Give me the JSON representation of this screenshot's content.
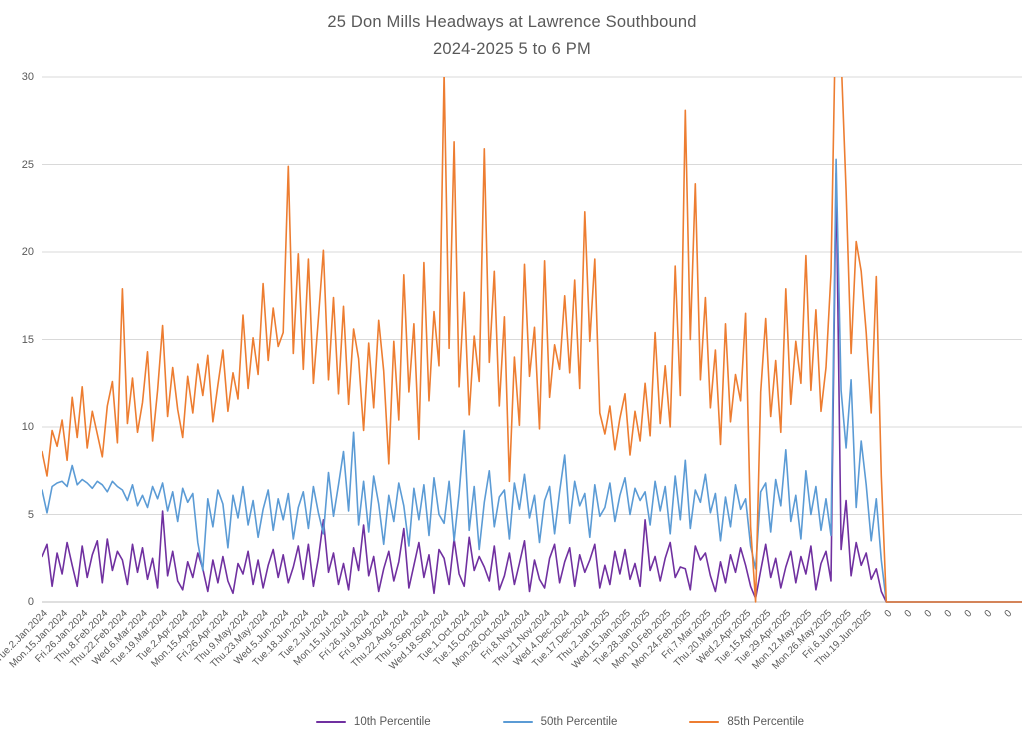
{
  "chart_data": {
    "type": "line",
    "title_line1": "25 Don Mills Headways at Lawrence Southbound",
    "title_line2": "2024-2025 5 to 6 PM",
    "y_min": 0,
    "y_max": 30,
    "y_ticks": [
      0,
      5,
      10,
      15,
      20,
      25,
      30
    ],
    "grid": true,
    "legend_position": "bottom",
    "label_step": 4,
    "x_labels": [
      "Tue.2.Jan.2024",
      "Mon.15.Jan.2024",
      "Fri.26.Jan.2024",
      "Thu.8.Feb.2024",
      "Thu.22.Feb.2024",
      "Wed.6.Mar.2024",
      "Tue.19.Mar.2024",
      "Tue.2.Apr.2024",
      "Mon.15.Apr.2024",
      "Fri.26.Apr.2024",
      "Thu.9.May.2024",
      "Thu.23.May.2024",
      "Wed.5.Jun.2024",
      "Tue.18.Jun.2024",
      "Tue.2.Jul.2024",
      "Mon.15.Jul.2024",
      "Fri.26.Jul.2024",
      "Fri.9.Aug.2024",
      "Thu.22.Aug.2024",
      "Thu.5.Sep.2024",
      "Wed.18.Sep.2024",
      "Tue.1.Oct.2024",
      "Tue.15.Oct.2024",
      "Mon.28.Oct.2024",
      "Fri.8.Nov.2024",
      "Thu.21.Nov.2024",
      "Wed.4.Dec.2024",
      "Tue.17.Dec.2024",
      "Thu.2.Jan.2025",
      "Wed.15.Jan.2025",
      "Tue.28.Jan.2025",
      "Mon.10.Feb.2025",
      "Mon.24.Feb.2025",
      "Fri.7.Mar.2025",
      "Thu.20.Mar.2025",
      "Wed.2.Apr.2025",
      "Tue.15.Apr.2025",
      "Tue.29.Apr.2025",
      "Mon.12.May.2025",
      "Mon.26.May.2025",
      "Fri.6.Jun.2025",
      "Thu.19.Jun.2025",
      "0",
      "0",
      "0",
      "0",
      "0",
      "0",
      "0"
    ],
    "series": [
      {
        "name": "10th Percentile",
        "color": "#7030A0",
        "values": [
          2.6,
          3.3,
          0.9,
          2.8,
          1.6,
          3.4,
          2.1,
          0.9,
          3.2,
          1.4,
          2.7,
          3.5,
          1.1,
          3.6,
          1.8,
          2.9,
          2.4,
          1.0,
          3.3,
          1.7,
          3.1,
          1.3,
          2.5,
          0.8,
          5.2,
          1.5,
          2.9,
          1.2,
          0.7,
          2.3,
          1.4,
          2.8,
          1.9,
          0.6,
          2.4,
          1.1,
          2.6,
          1.2,
          0.5,
          2.2,
          1.6,
          2.9,
          1.0,
          2.4,
          0.8,
          2.1,
          3.0,
          1.4,
          2.7,
          1.1,
          2.0,
          3.2,
          1.3,
          3.3,
          0.9,
          2.5,
          4.7,
          1.7,
          2.8,
          1.0,
          2.2,
          0.7,
          3.1,
          1.8,
          4.4,
          1.5,
          2.6,
          0.6,
          1.9,
          2.9,
          1.2,
          2.3,
          4.2,
          0.8,
          2.1,
          3.4,
          1.4,
          2.7,
          0.5,
          3.0,
          2.5,
          1.0,
          3.6,
          1.6,
          0.9,
          3.7,
          1.8,
          2.6,
          2.0,
          1.2,
          3.2,
          0.7,
          1.5,
          2.8,
          1.0,
          2.2,
          3.5,
          0.6,
          2.4,
          1.3,
          0.8,
          2.5,
          3.3,
          1.1,
          2.3,
          3.1,
          0.9,
          2.7,
          1.7,
          2.4,
          3.3,
          0.8,
          2.1,
          1.0,
          2.9,
          1.6,
          3.0,
          1.3,
          2.2,
          0.9,
          4.7,
          1.8,
          2.6,
          1.2,
          2.5,
          3.4,
          1.4,
          2.0,
          1.9,
          0.7,
          3.2,
          2.4,
          2.8,
          1.5,
          0.6,
          2.3,
          1.1,
          2.7,
          1.7,
          3.1,
          2.1,
          0.9,
          0.2,
          1.8,
          3.3,
          1.4,
          2.5,
          0.8,
          2.0,
          2.9,
          1.1,
          2.6,
          1.6,
          3.2,
          0.7,
          2.2,
          2.9,
          1.2,
          24.5,
          3.0,
          5.8,
          1.5,
          3.4,
          2.1,
          2.8,
          1.3,
          1.9,
          0.6,
          0,
          0,
          0,
          0,
          0,
          0,
          0,
          0,
          0,
          0,
          0,
          0,
          0,
          0,
          0,
          0,
          0,
          0,
          0,
          0,
          0,
          0,
          0,
          0,
          0,
          0,
          0,
          0
        ]
      },
      {
        "name": "50th Percentile",
        "color": "#5B9BD5",
        "values": [
          6.4,
          5.1,
          6.6,
          6.8,
          6.9,
          6.6,
          7.8,
          6.7,
          7.0,
          6.8,
          6.5,
          6.9,
          6.7,
          6.3,
          6.9,
          6.6,
          6.4,
          5.8,
          6.7,
          5.5,
          6.1,
          5.4,
          6.6,
          5.9,
          6.8,
          5.2,
          6.3,
          4.6,
          6.5,
          5.7,
          6.2,
          3.4,
          1.8,
          5.9,
          4.3,
          6.4,
          5.6,
          3.1,
          6.1,
          4.8,
          6.6,
          4.4,
          5.8,
          3.7,
          5.3,
          6.4,
          4.1,
          5.9,
          4.7,
          6.2,
          3.6,
          5.4,
          6.3,
          4.2,
          6.6,
          5.1,
          3.9,
          7.4,
          4.9,
          6.7,
          8.6,
          5.2,
          9.7,
          4.4,
          6.9,
          4.0,
          7.2,
          5.6,
          3.3,
          6.1,
          4.6,
          6.8,
          5.5,
          3.2,
          6.5,
          4.7,
          6.7,
          3.8,
          7.1,
          5.0,
          4.5,
          6.9,
          3.5,
          6.2,
          9.8,
          4.1,
          6.6,
          3.0,
          5.7,
          7.5,
          4.3,
          6.0,
          6.4,
          3.6,
          6.8,
          5.3,
          7.3,
          4.8,
          6.1,
          3.4,
          5.8,
          6.6,
          3.9,
          6.3,
          8.4,
          4.5,
          6.9,
          5.5,
          6.2,
          3.7,
          6.7,
          4.9,
          5.4,
          6.8,
          4.6,
          6.1,
          7.1,
          5.0,
          6.5,
          5.8,
          6.3,
          4.4,
          6.9,
          5.2,
          6.6,
          3.9,
          7.2,
          4.7,
          8.1,
          4.2,
          6.4,
          5.7,
          7.3,
          5.1,
          6.2,
          3.5,
          6.0,
          4.3,
          6.7,
          5.3,
          5.9,
          3.2,
          1.9,
          6.3,
          6.8,
          4.0,
          7.0,
          5.5,
          8.7,
          4.6,
          6.1,
          3.6,
          7.5,
          5.0,
          6.6,
          4.1,
          5.9,
          3.8,
          25.3,
          12.1,
          8.8,
          12.7,
          5.4,
          9.2,
          6.7,
          3.5,
          5.9,
          2.4,
          0,
          0,
          0,
          0,
          0,
          0,
          0,
          0,
          0,
          0,
          0,
          0,
          0,
          0,
          0,
          0,
          0,
          0,
          0,
          0,
          0,
          0,
          0,
          0,
          0,
          0,
          0,
          0
        ]
      },
      {
        "name": "85th Percentile",
        "color": "#ED7D31",
        "values": [
          8.6,
          7.2,
          9.8,
          8.9,
          10.4,
          8.1,
          11.7,
          9.4,
          12.3,
          8.8,
          10.9,
          9.6,
          8.3,
          11.2,
          12.6,
          9.1,
          17.9,
          10.2,
          12.8,
          9.7,
          11.4,
          14.3,
          9.2,
          12.1,
          15.8,
          10.6,
          13.4,
          11.0,
          9.4,
          12.9,
          10.8,
          13.6,
          11.8,
          14.1,
          10.3,
          12.4,
          14.4,
          10.9,
          13.1,
          11.6,
          16.4,
          12.2,
          15.1,
          13.0,
          18.2,
          13.8,
          16.8,
          14.6,
          15.4,
          24.9,
          14.2,
          19.9,
          13.3,
          19.6,
          12.5,
          16.2,
          20.1,
          12.7,
          17.4,
          11.9,
          16.9,
          11.3,
          15.6,
          13.9,
          9.8,
          14.8,
          11.1,
          16.1,
          13.2,
          7.9,
          14.9,
          10.4,
          18.7,
          12.0,
          15.9,
          9.3,
          19.4,
          11.5,
          16.6,
          13.5,
          30.2,
          14.5,
          26.3,
          12.3,
          17.7,
          10.7,
          15.2,
          12.6,
          25.9,
          13.7,
          18.9,
          11.2,
          16.3,
          6.9,
          14.0,
          10.1,
          19.3,
          12.9,
          15.7,
          9.9,
          19.5,
          11.7,
          14.7,
          13.3,
          17.5,
          13.1,
          18.4,
          12.2,
          22.3,
          14.9,
          19.6,
          10.8,
          9.6,
          11.2,
          8.7,
          10.5,
          11.9,
          8.4,
          10.9,
          9.2,
          12.5,
          9.5,
          15.4,
          10.2,
          13.5,
          10.0,
          19.2,
          11.8,
          28.1,
          15.0,
          23.9,
          12.7,
          17.4,
          11.1,
          14.4,
          9.0,
          15.9,
          10.3,
          13.0,
          11.5,
          16.5,
          4.3,
          0,
          12.0,
          16.2,
          10.6,
          13.8,
          9.7,
          17.9,
          11.3,
          14.9,
          12.5,
          19.8,
          12.1,
          16.7,
          10.9,
          13.4,
          18.8,
          34.9,
          31.2,
          23.5,
          14.2,
          20.6,
          18.9,
          15.4,
          10.8,
          18.6,
          7.2,
          0,
          0,
          0,
          0,
          0,
          0,
          0,
          0,
          0,
          0,
          0,
          0,
          0,
          0,
          0,
          0,
          0,
          0,
          0,
          0,
          0,
          0,
          0,
          0,
          0,
          0,
          0,
          0
        ]
      }
    ],
    "colors": {
      "grid": "#D9D9D9",
      "axis": "#BFBFBF",
      "text": "#595959",
      "background": "#FFFFFF"
    }
  }
}
